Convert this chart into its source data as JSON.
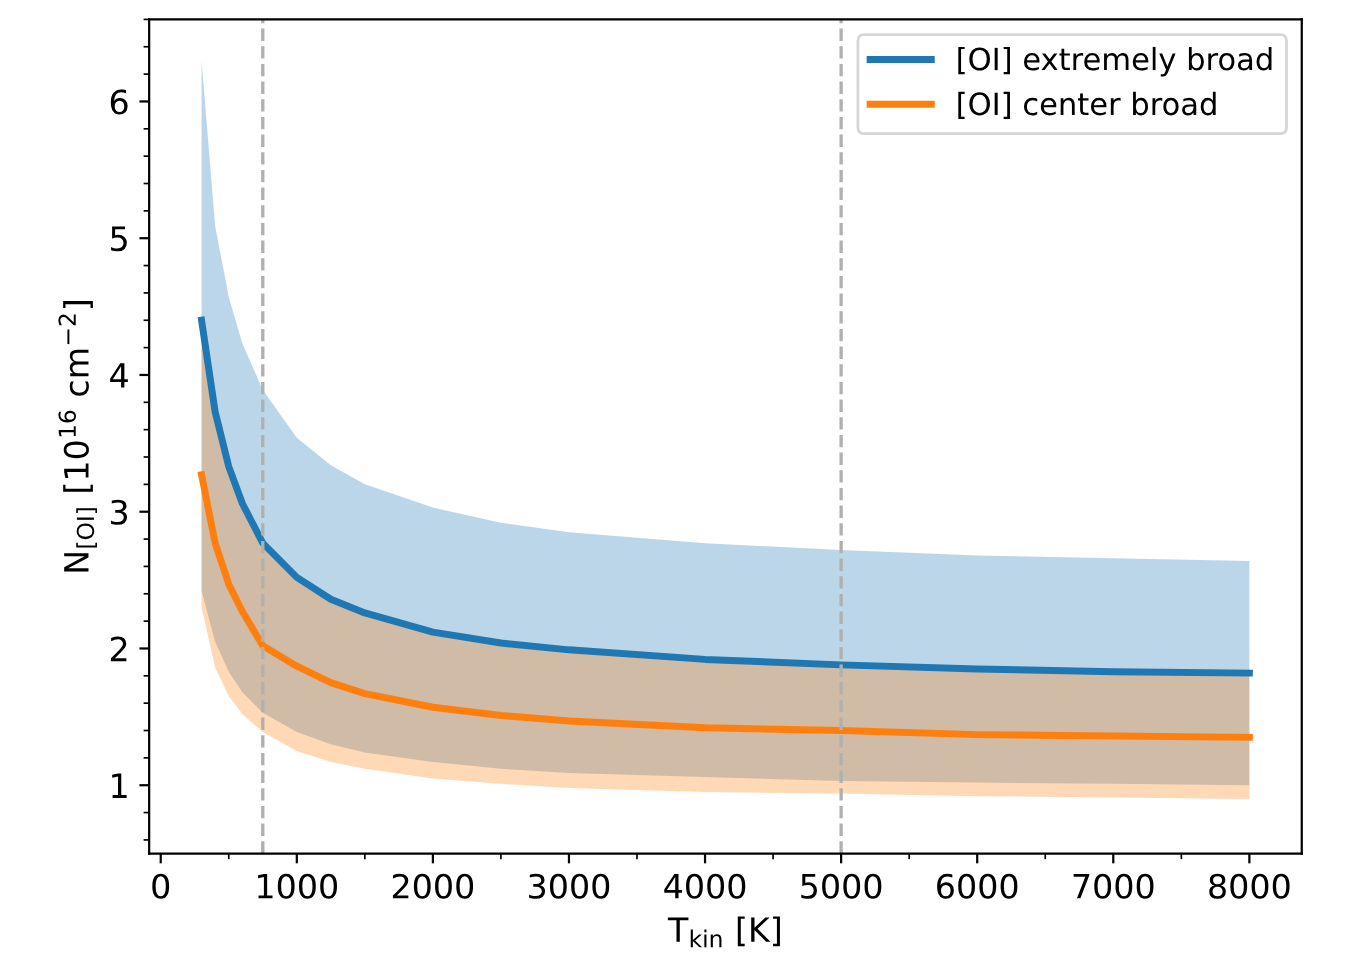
{
  "chart_data": {
    "type": "line",
    "xlabel": "T$_{kin}$ [K]",
    "ylabel": "N$_{[OI]}$ [10$^{16}$ cm$^{−2}$]",
    "x": [
      300,
      400,
      500,
      600,
      750,
      1000,
      1250,
      1500,
      2000,
      2500,
      3000,
      4000,
      5000,
      6000,
      7000,
      8000
    ],
    "series": [
      {
        "name": "[OI] extremely broad",
        "color": "#1f77b4",
        "values": [
          4.4,
          3.73,
          3.33,
          3.06,
          2.77,
          2.52,
          2.36,
          2.26,
          2.12,
          2.04,
          1.99,
          1.92,
          1.88,
          1.85,
          1.83,
          1.82
        ],
        "lower": [
          2.42,
          2.05,
          1.83,
          1.68,
          1.53,
          1.39,
          1.3,
          1.24,
          1.17,
          1.12,
          1.09,
          1.06,
          1.03,
          1.02,
          1.01,
          1.0
        ],
        "upper": [
          6.3,
          5.09,
          4.57,
          4.23,
          3.89,
          3.54,
          3.34,
          3.2,
          3.03,
          2.92,
          2.85,
          2.77,
          2.72,
          2.68,
          2.66,
          2.64
        ]
      },
      {
        "name": "[OI] center broad",
        "color": "#ff7f0e",
        "values": [
          3.27,
          2.77,
          2.47,
          2.27,
          2.02,
          1.87,
          1.75,
          1.67,
          1.57,
          1.51,
          1.47,
          1.42,
          1.4,
          1.37,
          1.36,
          1.35
        ],
        "lower": [
          2.3,
          1.86,
          1.65,
          1.52,
          1.39,
          1.25,
          1.17,
          1.12,
          1.05,
          1.01,
          0.98,
          0.95,
          0.94,
          0.92,
          0.91,
          0.9
        ],
        "upper": [
          4.4,
          3.73,
          3.33,
          3.06,
          2.77,
          2.52,
          2.36,
          2.26,
          2.12,
          2.04,
          1.99,
          1.92,
          1.88,
          1.85,
          1.83,
          1.82
        ]
      }
    ],
    "xlim": [
      -85,
      8385
    ],
    "xticks": [
      0,
      1000,
      2000,
      3000,
      4000,
      5000,
      6000,
      7000,
      8000
    ],
    "ylim": [
      0.5,
      6.6
    ],
    "yticks": [
      1,
      2,
      3,
      4,
      5,
      6
    ],
    "ref_lines": [
      {
        "axis": "x",
        "value": 750,
        "color": "#b0b0b0",
        "line_style": "dashed"
      },
      {
        "axis": "x",
        "value": 5000,
        "color": "#b0b0b0",
        "line_style": "dashed"
      }
    ],
    "legend": "top right",
    "grid": false,
    "marker": "none",
    "line_style": "solid"
  }
}
